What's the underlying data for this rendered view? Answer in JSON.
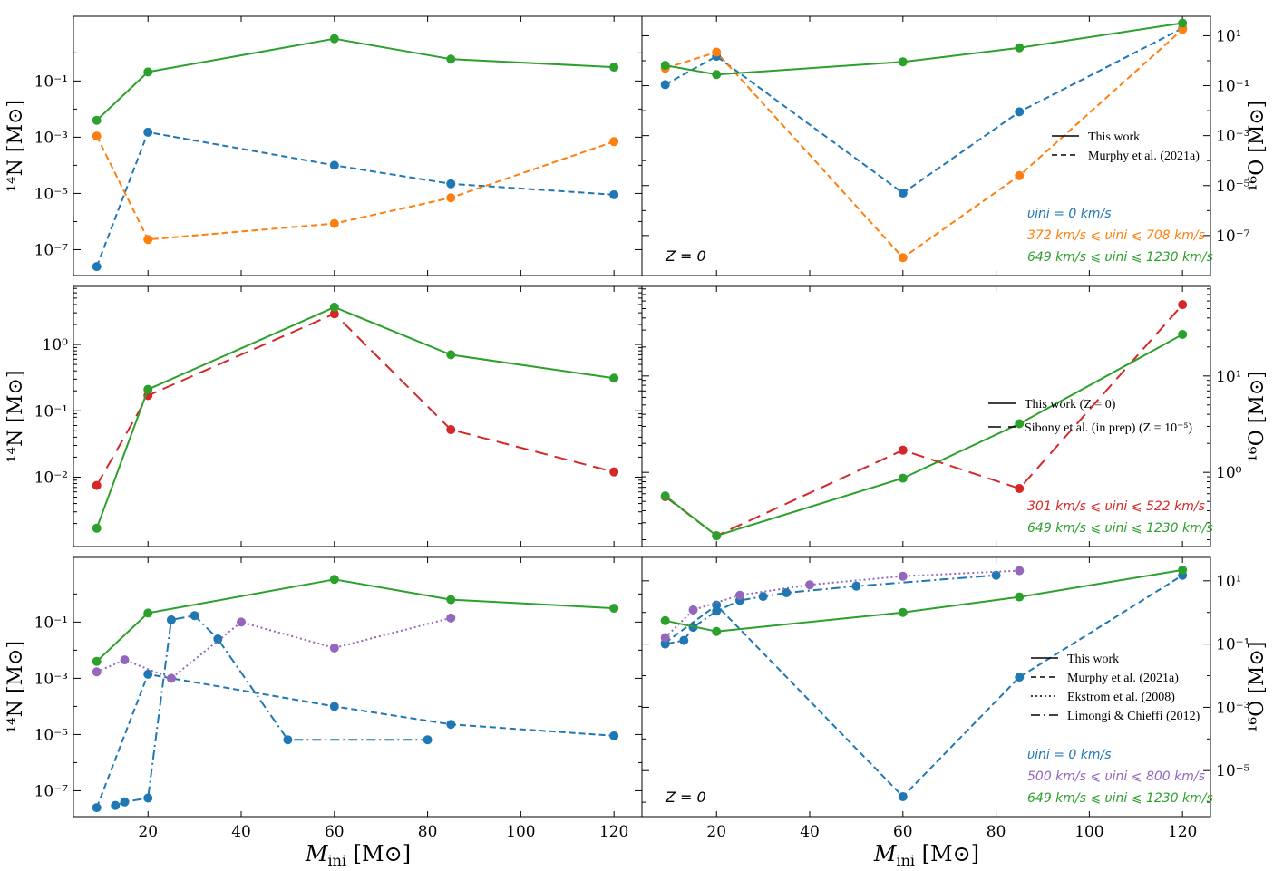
{
  "colors": {
    "blue": "#1f77b4",
    "orange": "#ff7f0e",
    "green": "#2ca02c",
    "red": "#d62728",
    "purple": "#9467bd"
  },
  "xlabel_main": "M",
  "xlabel_sub": "ini",
  "xlabel_unit": "[M⊙]",
  "ylabel_left": "¹⁴N [M⊙]",
  "ylabel_right": "¹⁶O [M⊙]",
  "chart_data": [
    {
      "id": "row1-left",
      "type": "line",
      "row": 0,
      "col": 0,
      "yscale": "log",
      "xlim": [
        4,
        126
      ],
      "ylim": [
        1.2e-08,
        20
      ],
      "xticks": [
        20,
        40,
        60,
        80,
        100,
        120
      ],
      "yticks": [
        {
          "v": 1e-07,
          "label": "10⁻⁷"
        },
        {
          "v": 1e-05,
          "label": "10⁻⁵"
        },
        {
          "v": 0.001,
          "label": "10⁻³"
        },
        {
          "v": 0.1,
          "label": "10⁻¹"
        }
      ],
      "yminor": [
        1e-06,
        0.0001,
        0.01,
        1
      ],
      "ylabel_side": "left",
      "series": [
        {
          "name": "Murphy et al. (2021a) v=0",
          "color": "blue",
          "style": "dashed",
          "x": [
            9,
            20,
            60,
            85,
            120
          ],
          "y": [
            2.5e-08,
            0.0015,
            0.0001,
            2.2e-05,
            9e-06
          ]
        },
        {
          "name": "Murphy et al. (2021a) rotating",
          "color": "orange",
          "style": "dashed",
          "x": [
            9,
            20,
            60,
            85,
            120
          ],
          "y": [
            0.0011,
            2.3e-07,
            8.5e-07,
            7e-06,
            0.0007
          ]
        },
        {
          "name": "This work",
          "color": "green",
          "style": "solid",
          "x": [
            9,
            20,
            60,
            85,
            120
          ],
          "y": [
            0.004,
            0.21,
            3.2,
            0.6,
            0.31
          ]
        }
      ]
    },
    {
      "id": "row1-right",
      "type": "line",
      "row": 0,
      "col": 1,
      "yscale": "log",
      "xlim": [
        4,
        126
      ],
      "ylim": [
        2.5e-09,
        60
      ],
      "xticks": [
        20,
        40,
        60,
        80,
        100,
        120
      ],
      "yticks": [
        {
          "v": 1e-07,
          "label": "10⁻⁷"
        },
        {
          "v": 1e-05,
          "label": "10⁻⁵"
        },
        {
          "v": 0.001,
          "label": "10⁻³"
        },
        {
          "v": 0.1,
          "label": "10⁻¹"
        },
        {
          "v": 10,
          "label": "10¹"
        }
      ],
      "yminor": [
        1e-06,
        0.0001,
        0.01,
        1
      ],
      "ylabel_side": "right",
      "z_label": "Z = 0",
      "legend": [
        {
          "label": "This work",
          "style": "solid"
        },
        {
          "label": "Murphy et al. (2021a)",
          "style": "dashed"
        }
      ],
      "annotations": [
        {
          "text": "υini = 0 km/s",
          "color": "blue"
        },
        {
          "text": "372 km/s ⩽ υini ⩽ 708 km/s",
          "color": "orange"
        },
        {
          "text": "649 km/s ⩽ υini ⩽ 1230 km/s",
          "color": "green"
        }
      ],
      "series": [
        {
          "name": "Murphy et al. (2021a) v=0",
          "color": "blue",
          "style": "dashed",
          "x": [
            9,
            20,
            60,
            85,
            120
          ],
          "y": [
            0.11,
            1.5,
            5e-06,
            0.009,
            20
          ]
        },
        {
          "name": "Murphy et al. (2021a) rotating",
          "color": "orange",
          "style": "dashed",
          "x": [
            9,
            20,
            60,
            85,
            120
          ],
          "y": [
            0.5,
            2.2,
            1.3e-08,
            2.5e-05,
            18
          ]
        },
        {
          "name": "This work",
          "color": "green",
          "style": "solid",
          "x": [
            9,
            20,
            60,
            85,
            120
          ],
          "y": [
            0.65,
            0.28,
            0.9,
            3.3,
            32
          ]
        }
      ]
    },
    {
      "id": "row2-left",
      "type": "line",
      "row": 1,
      "col": 0,
      "yscale": "log",
      "xlim": [
        4,
        126
      ],
      "ylim": [
        0.0009,
        7.5
      ],
      "xticks": [
        20,
        40,
        60,
        80,
        100,
        120
      ],
      "yticks": [
        {
          "v": 0.01,
          "label": "10⁻²"
        },
        {
          "v": 0.1,
          "label": "10⁻¹"
        },
        {
          "v": 1,
          "label": "10⁰"
        }
      ],
      "yminor": [
        0.002,
        0.003,
        0.004,
        0.005,
        0.006,
        0.007,
        0.008,
        0.009,
        0.02,
        0.03,
        0.04,
        0.05,
        0.06,
        0.07,
        0.08,
        0.09,
        0.2,
        0.3,
        0.4,
        0.5,
        0.6,
        0.7,
        0.8,
        0.9,
        2,
        3,
        4,
        5,
        6,
        7
      ],
      "ylabel_side": "left",
      "series": [
        {
          "name": "Sibony et al. (in prep)",
          "color": "red",
          "style": "dashed-long",
          "x": [
            9,
            20,
            60,
            85,
            120
          ],
          "y": [
            0.0075,
            0.17,
            2.9,
            0.052,
            0.012
          ]
        },
        {
          "name": "This work",
          "color": "green",
          "style": "solid",
          "x": [
            9,
            20,
            60,
            85,
            120
          ],
          "y": [
            0.0017,
            0.21,
            3.65,
            0.7,
            0.31
          ]
        }
      ]
    },
    {
      "id": "row2-right",
      "type": "line",
      "row": 1,
      "col": 1,
      "yscale": "log",
      "xlim": [
        4,
        126
      ],
      "ylim": [
        0.17,
        85
      ],
      "xticks": [
        20,
        40,
        60,
        80,
        100,
        120
      ],
      "yticks": [
        {
          "v": 1,
          "label": "10⁰"
        },
        {
          "v": 10,
          "label": "10¹"
        }
      ],
      "yminor": [
        0.2,
        0.3,
        0.4,
        0.5,
        0.6,
        0.7,
        0.8,
        0.9,
        2,
        3,
        4,
        5,
        6,
        7,
        8,
        9,
        20,
        30,
        40,
        50,
        60,
        70,
        80
      ],
      "ylabel_side": "right",
      "legend": [
        {
          "label": "This work (Z = 0)",
          "style": "solid"
        },
        {
          "label": "Sibony et al. (in prep) (Z = 10⁻⁵)",
          "style": "dashed-long"
        }
      ],
      "annotations": [
        {
          "text": "301 km/s ⩽ υini ⩽ 522 km/s",
          "color": "red"
        },
        {
          "text": "649 km/s ⩽ υini ⩽ 1230 km/s",
          "color": "green"
        }
      ],
      "series": [
        {
          "name": "Sibony et al. (in prep)",
          "color": "red",
          "style": "dashed-long",
          "x": [
            9,
            20,
            60,
            85,
            120
          ],
          "y": [
            0.56,
            0.22,
            1.7,
            0.68,
            55
          ]
        },
        {
          "name": "This work",
          "color": "green",
          "style": "solid",
          "x": [
            9,
            20,
            60,
            85,
            120
          ],
          "y": [
            0.57,
            0.22,
            0.87,
            3.2,
            27
          ]
        }
      ]
    },
    {
      "id": "row3-left",
      "type": "line",
      "row": 2,
      "col": 0,
      "yscale": "log",
      "xlim": [
        4,
        126
      ],
      "ylim": [
        1.2e-08,
        20
      ],
      "xticks": [
        20,
        40,
        60,
        80,
        100,
        120
      ],
      "yticks": [
        {
          "v": 1e-07,
          "label": "10⁻⁷"
        },
        {
          "v": 1e-05,
          "label": "10⁻⁵"
        },
        {
          "v": 0.001,
          "label": "10⁻³"
        },
        {
          "v": 0.1,
          "label": "10⁻¹"
        }
      ],
      "yminor": [
        1e-06,
        0.0001,
        0.01,
        1
      ],
      "ylabel_side": "left",
      "series": [
        {
          "name": "Murphy et al. (2021a)",
          "color": "blue",
          "style": "dashed",
          "x": [
            9,
            20,
            60,
            85,
            120
          ],
          "y": [
            2.5e-08,
            0.0014,
            0.0001,
            2.3e-05,
            9e-06
          ]
        },
        {
          "name": "Limongi & Chieffi (2012)",
          "color": "blue",
          "style": "dashdot",
          "x": [
            13,
            15,
            20,
            25,
            30,
            35,
            50,
            80
          ],
          "y": [
            3e-08,
            4e-08,
            5.5e-08,
            0.12,
            0.17,
            0.025,
            6.5e-06,
            6.5e-06
          ]
        },
        {
          "name": "Ekstrom et al. (2008)",
          "color": "purple",
          "style": "dotted",
          "x": [
            9,
            15,
            25,
            40,
            60,
            85
          ],
          "y": [
            0.0017,
            0.0045,
            0.001,
            0.1,
            0.012,
            0.14
          ]
        },
        {
          "name": "This work",
          "color": "green",
          "style": "solid",
          "x": [
            9,
            20,
            60,
            85,
            120
          ],
          "y": [
            0.004,
            0.21,
            3.3,
            0.63,
            0.31
          ]
        }
      ]
    },
    {
      "id": "row3-right",
      "type": "line",
      "row": 2,
      "col": 1,
      "yscale": "log",
      "xlim": [
        4,
        126
      ],
      "ylim": [
        3.5e-07,
        55
      ],
      "xticks": [
        20,
        40,
        60,
        80,
        100,
        120
      ],
      "yticks": [
        {
          "v": 1e-05,
          "label": "10⁻⁵"
        },
        {
          "v": 0.001,
          "label": "10⁻³"
        },
        {
          "v": 0.1,
          "label": "10⁻¹"
        },
        {
          "v": 10,
          "label": "10¹"
        }
      ],
      "yminor": [
        1e-06,
        0.0001,
        0.01,
        1
      ],
      "ylabel_side": "right",
      "z_label": "Z = 0",
      "legend": [
        {
          "label": "This work",
          "style": "solid"
        },
        {
          "label": "Murphy et al. (2021a)",
          "style": "dashed"
        },
        {
          "label": "Ekstrom et al. (2008)",
          "style": "dotted"
        },
        {
          "label": "Limongi & Chieffi (2012)",
          "style": "dashdot"
        }
      ],
      "annotations": [
        {
          "text": "υini = 0 km/s",
          "color": "blue"
        },
        {
          "text": "500 km/s ⩽ υini ⩽ 800 km/s",
          "color": "purple"
        },
        {
          "text": "649 km/s ⩽ υini ⩽ 1230 km/s",
          "color": "green"
        }
      ],
      "series": [
        {
          "name": "Murphy et al. (2021a)",
          "color": "blue",
          "style": "dashed",
          "x": [
            9,
            20,
            60,
            85,
            120
          ],
          "y": [
            0.11,
            1.7,
            1.5e-06,
            0.009,
            15
          ]
        },
        {
          "name": "Limongi & Chieffi (2012)",
          "color": "blue",
          "style": "dashdot",
          "x": [
            9,
            13,
            15,
            20,
            25,
            30,
            35,
            50,
            80
          ],
          "y": [
            0.1,
            0.13,
            0.34,
            1.1,
            2.4,
            3.2,
            4.2,
            6.8,
            15
          ]
        },
        {
          "name": "Ekstrom et al. (2008)",
          "color": "purple",
          "style": "dotted",
          "x": [
            9,
            15,
            25,
            40,
            60,
            85
          ],
          "y": [
            0.16,
            1.2,
            3.5,
            7.5,
            14,
            21
          ]
        },
        {
          "name": "This work",
          "color": "green",
          "style": "solid",
          "x": [
            9,
            20,
            60,
            85,
            120
          ],
          "y": [
            0.55,
            0.25,
            1.0,
            3.1,
            22
          ]
        }
      ]
    }
  ]
}
